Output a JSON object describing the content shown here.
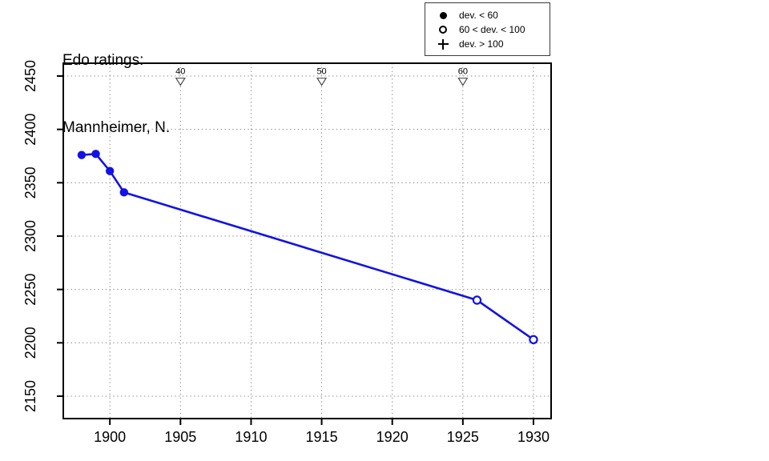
{
  "title": {
    "line1": "Edo ratings:",
    "line2": "Mannheimer, N."
  },
  "legend": {
    "items": [
      {
        "symbol": "filled-circle-icon",
        "label": "dev. < 60"
      },
      {
        "symbol": "open-circle-icon",
        "label": "60 < dev. < 100"
      },
      {
        "symbol": "plus-icon",
        "label": "dev. > 100"
      }
    ]
  },
  "colors": {
    "line": "#1212e6",
    "grid": "#8a8a8a",
    "axis": "#000000",
    "triangle": "#4d4d4d",
    "background": "#ffffff"
  },
  "chart_data": {
    "type": "line",
    "title": "Edo ratings: Mannheimer, N.",
    "xlabel": "",
    "ylabel": "",
    "xlim": [
      1896.7,
      1931.25
    ],
    "ylim": [
      2129,
      2462
    ],
    "x_ticks": [
      1900,
      1905,
      1910,
      1915,
      1920,
      1925,
      1930
    ],
    "y_ticks": [
      2150,
      2200,
      2250,
      2300,
      2350,
      2400,
      2450
    ],
    "grid": "dotted",
    "legend_position": "top-right",
    "series": [
      {
        "name": "Edo rating",
        "points": [
          {
            "x": 1898,
            "y": 2376,
            "marker": "filled",
            "dev": "dev. < 60"
          },
          {
            "x": 1899,
            "y": 2377,
            "marker": "filled",
            "dev": "dev. < 60"
          },
          {
            "x": 1900,
            "y": 2361,
            "marker": "filled",
            "dev": "dev. < 60"
          },
          {
            "x": 1901,
            "y": 2341,
            "marker": "filled",
            "dev": "dev. < 60"
          },
          {
            "x": 1926,
            "y": 2240,
            "marker": "open",
            "dev": "60 < dev. < 100"
          },
          {
            "x": 1930,
            "y": 2203,
            "marker": "open",
            "dev": "60 < dev. < 100"
          }
        ]
      }
    ],
    "age_markers": {
      "y": 2445,
      "items": [
        {
          "x": 1905,
          "label": "40"
        },
        {
          "x": 1915,
          "label": "50"
        },
        {
          "x": 1925,
          "label": "60"
        }
      ]
    }
  }
}
